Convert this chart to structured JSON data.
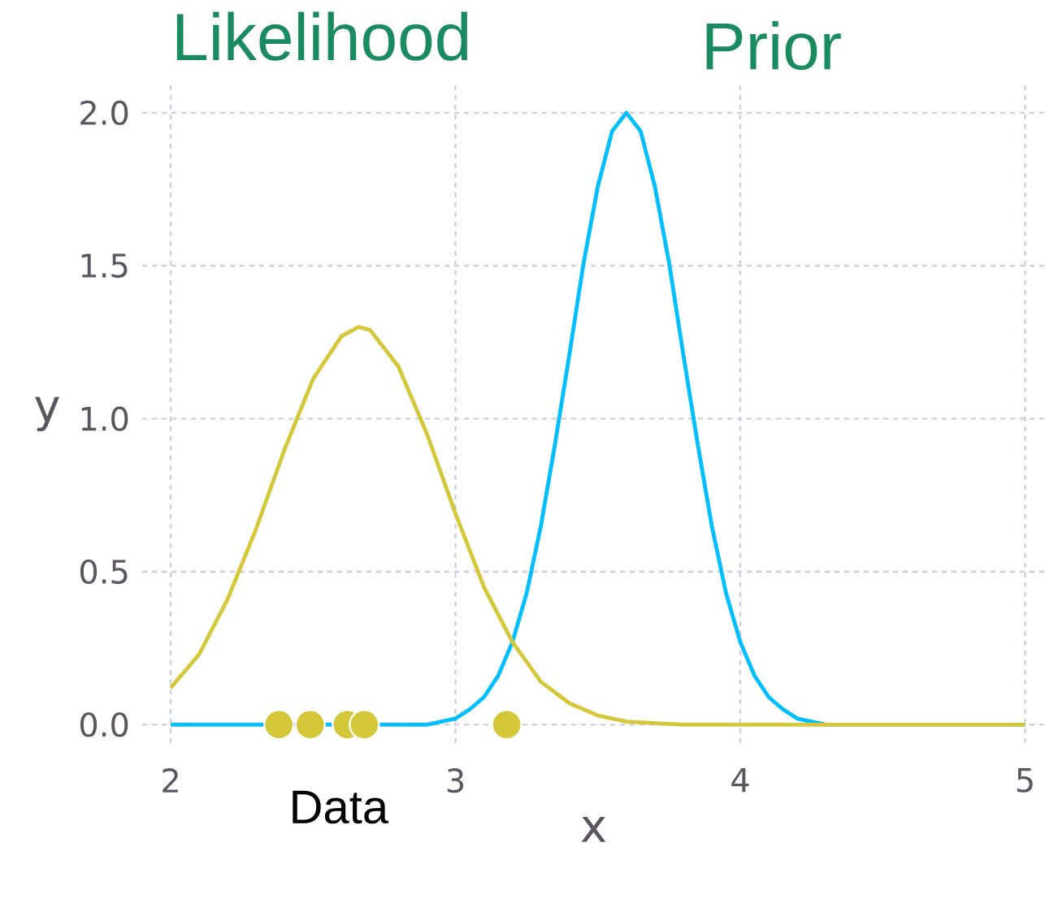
{
  "chart_data": {
    "type": "line",
    "xlabel": "x",
    "ylabel": "y",
    "xlim": [
      1.9,
      5.07
    ],
    "ylim": [
      -0.06,
      2.09
    ],
    "xticks": [
      2,
      3,
      4,
      5
    ],
    "yticks": [
      {
        "value": 0,
        "label": "0.0"
      },
      {
        "value": 0.5,
        "label": "0.5"
      },
      {
        "value": 1,
        "label": "1.0"
      },
      {
        "value": 1.5,
        "label": "1.5"
      },
      {
        "value": 2,
        "label": "2.0"
      }
    ],
    "grid": true,
    "annotations": [
      "Prior",
      "Likelihood",
      "Data"
    ],
    "series": [
      {
        "color": "#00bfff",
        "x": [
          2.0,
          2.8,
          2.9,
          3.0,
          3.05,
          3.1,
          3.15,
          3.2,
          3.25,
          3.3,
          3.35,
          3.4,
          3.45,
          3.5,
          3.55,
          3.6,
          3.65,
          3.7,
          3.75,
          3.8,
          3.85,
          3.9,
          3.95,
          4.0,
          4.05,
          4.1,
          4.15,
          4.2,
          4.3,
          4.5,
          5.0
        ],
        "values": [
          0.0,
          0.0,
          0.0,
          0.02,
          0.05,
          0.09,
          0.16,
          0.27,
          0.43,
          0.65,
          0.92,
          1.21,
          1.51,
          1.76,
          1.94,
          2.0,
          1.94,
          1.76,
          1.51,
          1.21,
          0.92,
          0.65,
          0.43,
          0.27,
          0.16,
          0.09,
          0.05,
          0.02,
          0.0,
          0.0,
          0.0
        ]
      },
      {
        "color": "#d4c83a",
        "x": [
          2.0,
          2.1,
          2.2,
          2.3,
          2.4,
          2.5,
          2.6,
          2.66,
          2.7,
          2.8,
          2.9,
          3.0,
          3.1,
          3.2,
          3.3,
          3.4,
          3.5,
          3.6,
          3.8,
          4.0,
          4.5,
          5.0
        ],
        "values": [
          0.12,
          0.23,
          0.41,
          0.64,
          0.9,
          1.13,
          1.27,
          1.3,
          1.29,
          1.17,
          0.95,
          0.69,
          0.45,
          0.27,
          0.14,
          0.07,
          0.03,
          0.01,
          0.0,
          0.0,
          0.0,
          0.0
        ]
      },
      {
        "type": "scatter",
        "marker": "circle",
        "color": "#d4c83a",
        "x": [
          2.38,
          2.49,
          2.62,
          2.68,
          3.18
        ],
        "values": [
          0,
          0,
          0,
          0,
          0
        ]
      }
    ]
  }
}
